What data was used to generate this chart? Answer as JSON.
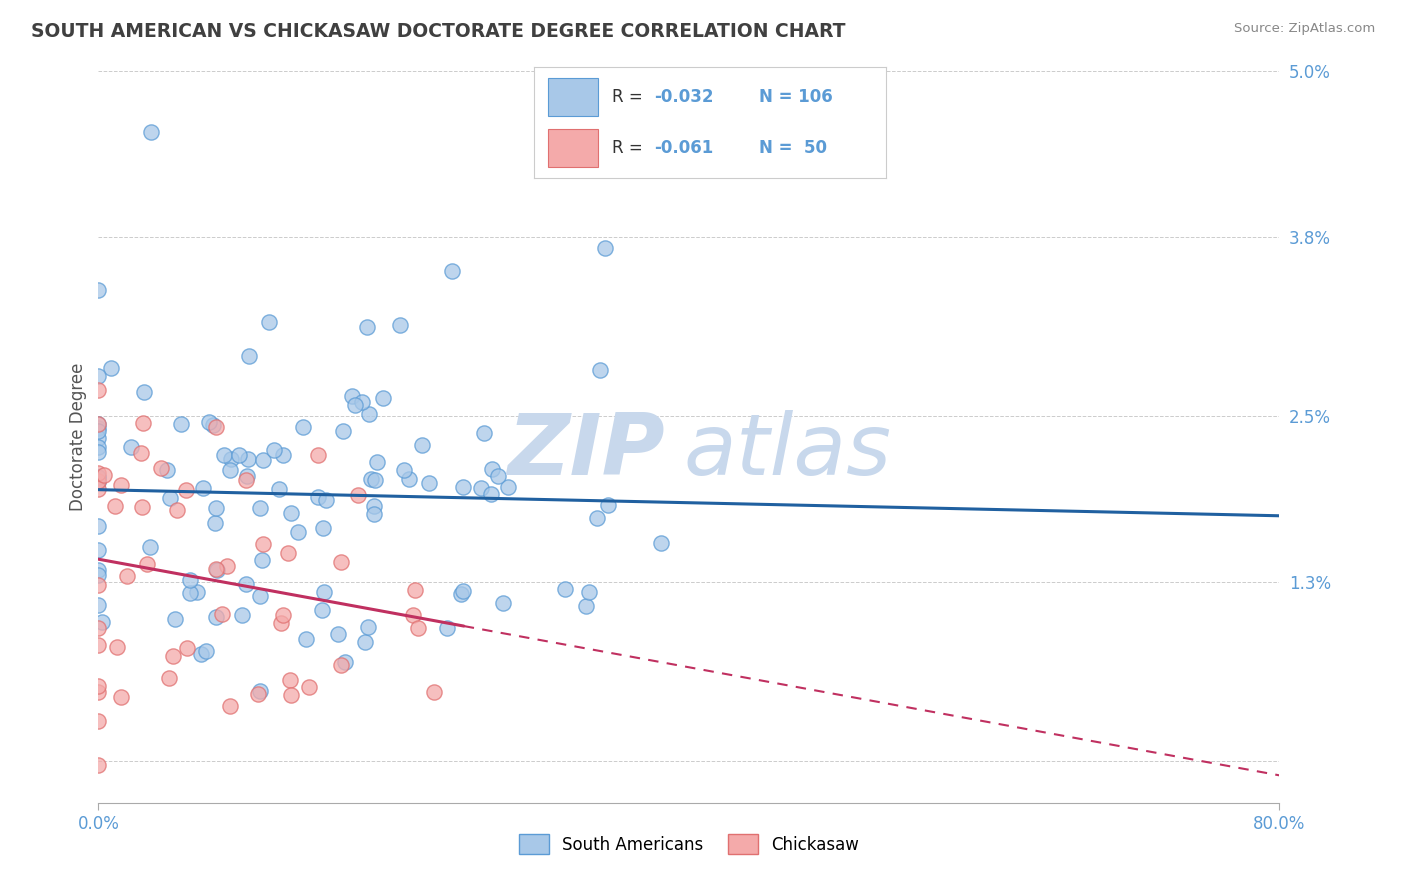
{
  "title": "SOUTH AMERICAN VS CHICKASAW DOCTORATE DEGREE CORRELATION CHART",
  "source": "Source: ZipAtlas.com",
  "ylabel": "Doctorate Degree",
  "xlabel": "",
  "xlim": [
    0.0,
    80.0
  ],
  "ylim": [
    -0.3,
    5.0
  ],
  "yticks": [
    0.0,
    1.3,
    2.5,
    3.8,
    5.0
  ],
  "ytick_labels": [
    "",
    "1.3%",
    "2.5%",
    "3.8%",
    "5.0%"
  ],
  "xticks": [
    0.0,
    80.0
  ],
  "xtick_labels": [
    "0.0%",
    "80.0%"
  ],
  "legend_blue_R": "R = -0.032",
  "legend_blue_N": "N = 106",
  "legend_pink_R": "R = -0.061",
  "legend_pink_N": "N =  50",
  "blue_color": "#a8c8e8",
  "pink_color": "#f4aaaa",
  "blue_edge": "#5b9bd5",
  "pink_edge": "#e07070",
  "trend_blue": "#2060a0",
  "trend_pink": "#c03060",
  "grid_color": "#cccccc",
  "title_color": "#404040",
  "axis_tick_color": "#5b9bd5",
  "watermark_color": "#c8d8ec",
  "background_color": "#ffffff",
  "blue_n": 106,
  "pink_n": 50,
  "blue_R": -0.032,
  "pink_R": -0.061,
  "blue_x_mean": 14.0,
  "blue_x_std": 13.0,
  "blue_y_mean": 1.85,
  "blue_y_std": 0.7,
  "pink_x_mean": 6.0,
  "pink_x_std": 7.0,
  "pink_y_mean": 1.3,
  "pink_y_std": 0.65,
  "blue_seed": 42,
  "pink_seed": 123
}
